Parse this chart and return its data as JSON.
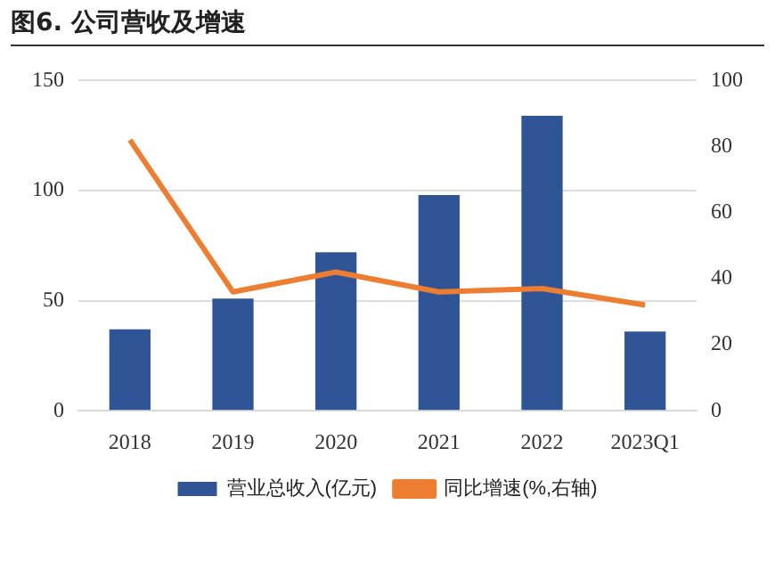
{
  "chart_data": {
    "type": "bar",
    "title": "图6. 公司营收及增速",
    "categories": [
      "2018",
      "2019",
      "2020",
      "2021",
      "2022",
      "2023Q1"
    ],
    "series": [
      {
        "name": "营业总收入(亿元)",
        "color": "#2f5597",
        "values": [
          37,
          51,
          72,
          98,
          134,
          36
        ]
      },
      {
        "name": "同比增速(%,右轴)",
        "type": "line",
        "axis": "y2",
        "color": "#ed7d31",
        "values": [
          82,
          36,
          42,
          36,
          37,
          32
        ]
      }
    ],
    "ylim": [
      0,
      150
    ],
    "yticks": [
      0,
      50,
      100,
      150
    ],
    "y2lim": [
      0,
      100
    ],
    "y2ticks": [
      0,
      20,
      40,
      60,
      80,
      100
    ],
    "grid": "y",
    "legend": "bottom",
    "marker": "none"
  }
}
